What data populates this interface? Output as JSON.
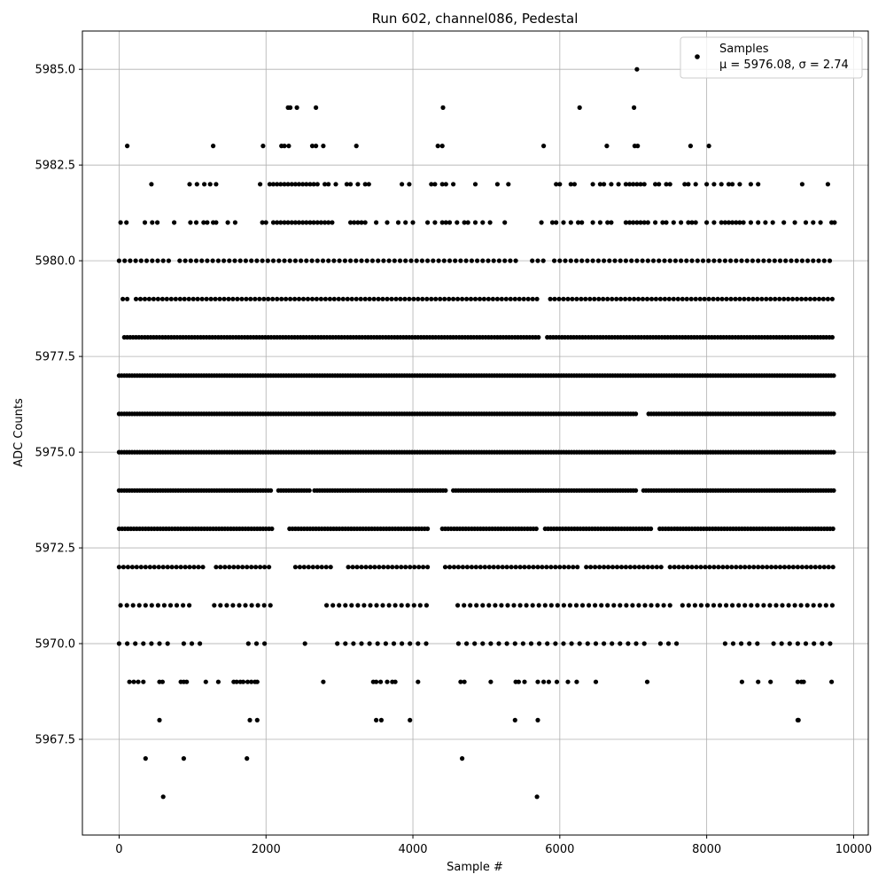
{
  "chart_data": {
    "type": "scatter",
    "title": "Run 602, channel086, Pedestal",
    "xlabel": "Sample #",
    "ylabel": "ADC Counts",
    "xlim": [
      -500,
      10200
    ],
    "ylim": [
      5965.0,
      5986.0
    ],
    "x_ticks": [
      0,
      2000,
      4000,
      6000,
      8000,
      10000
    ],
    "y_ticks": [
      5967.5,
      5970.0,
      5972.5,
      5975.0,
      5977.5,
      5980.0,
      5982.5,
      5985.0
    ],
    "x_tick_labels": [
      "0",
      "2000",
      "4000",
      "6000",
      "8000",
      "10000"
    ],
    "y_tick_labels": [
      "5967.5",
      "5970.0",
      "5972.5",
      "5975.0",
      "5977.5",
      "5980.0",
      "5982.5",
      "5985.0"
    ],
    "grid": true,
    "legend": {
      "position": "top-right",
      "entries": [
        "Samples",
        "μ = 5976.08, σ = 2.74"
      ]
    },
    "marker_color": "#000000",
    "series": [
      {
        "name": "Samples",
        "levels": [
          {
            "y": 5985,
            "x": [
              7050
            ]
          },
          {
            "y": 5984,
            "x": [
              2300,
              2330,
              2420,
              2680,
              4410,
              6270,
              7010
            ]
          },
          {
            "y": 5983,
            "x": [
              110,
              1280,
              1960,
              2210,
              2250,
              2310,
              2630,
              2680,
              2780,
              3230,
              4340,
              4400,
              5780,
              6640,
              7020,
              7060,
              7780,
              8030
            ]
          },
          {
            "y": 5982,
            "x": [
              440,
              960,
              1060,
              1160,
              1240,
              1320,
              1920,
              2050,
              2100,
              2150,
              2200,
              2250,
              2300,
              2350,
              2400,
              2450,
              2500,
              2550,
              2600,
              2650,
              2700,
              2800,
              2850,
              2950,
              3100,
              3150,
              3250,
              3350,
              3400,
              3850,
              3950,
              4250,
              4300,
              4400,
              4450,
              4550,
              4850,
              5150,
              5300,
              5950,
              6000,
              6150,
              6200,
              6450,
              6550,
              6600,
              6700,
              6800,
              6900,
              6950,
              7000,
              7050,
              7100,
              7150,
              7300,
              7350,
              7450,
              7500,
              7700,
              7750,
              7850,
              8000,
              8100,
              8200,
              8300,
              8350,
              8450,
              8600,
              8700,
              9300,
              9650
            ]
          },
          {
            "y": 5981,
            "x": [
              20,
              100,
              350,
              450,
              520,
              750,
              970,
              1050,
              1150,
              1200,
              1280,
              1320,
              1480,
              1580,
              1950,
              2000,
              2100,
              2150,
              2200,
              2250,
              2300,
              2350,
              2400,
              2450,
              2500,
              2550,
              2600,
              2650,
              2700,
              2750,
              2800,
              2850,
              2900,
              3150,
              3200,
              3250,
              3300,
              3350,
              3500,
              3650,
              3800,
              3900,
              4000,
              4200,
              4300,
              4400,
              4450,
              4500,
              4600,
              4700,
              4750,
              4850,
              4950,
              5050,
              5250,
              5750,
              5900,
              5950,
              6050,
              6150,
              6250,
              6300,
              6450,
              6550,
              6650,
              6700,
              6900,
              6950,
              7000,
              7050,
              7100,
              7150,
              7200,
              7300,
              7400,
              7450,
              7550,
              7650,
              7750,
              7800,
              7850,
              8000,
              8100,
              8200,
              8250,
              8300,
              8350,
              8400,
              8450,
              8500,
              8600,
              8700,
              8800,
              8900,
              9050,
              9200,
              9350,
              9450,
              9550,
              9700,
              9740
            ]
          }
        ],
        "bands": [
          {
            "y": 5980,
            "x_start": 0,
            "x_end": 9740,
            "step": 75,
            "gaps": [
              [
                700,
                760
              ],
              [
                5450,
                5550
              ],
              [
                5850,
                5880
              ]
            ]
          },
          {
            "y": 5979,
            "x_start": 50,
            "x_end": 9740,
            "step": 60,
            "gaps": [
              [
                150,
                200
              ],
              [
                2000,
                2020
              ],
              [
                5740,
                5850
              ]
            ]
          },
          {
            "y": 5978,
            "x_start": 70,
            "x_end": 9740,
            "step": 40,
            "gaps": [
              [
                5720,
                5810
              ]
            ]
          },
          {
            "y": 5977,
            "x_start": 0,
            "x_end": 9740,
            "step": 35,
            "gaps": []
          },
          {
            "y": 5976,
            "x_start": 0,
            "x_end": 9740,
            "step": 35,
            "gaps": [
              [
                7040,
                7200
              ]
            ]
          },
          {
            "y": 5975,
            "x_start": 0,
            "x_end": 9740,
            "step": 35,
            "gaps": []
          },
          {
            "y": 5974,
            "x_start": 0,
            "x_end": 9740,
            "step": 35,
            "gaps": [
              [
                2100,
                2160
              ],
              [
                2600,
                2650
              ],
              [
                4480,
                4520
              ],
              [
                7050,
                7130
              ]
            ]
          },
          {
            "y": 5973,
            "x_start": 0,
            "x_end": 9740,
            "step": 40,
            "gaps": [
              [
                2100,
                2180
              ],
              [
                2200,
                2300
              ],
              [
                4230,
                4380
              ],
              [
                5700,
                5780
              ],
              [
                7270,
                7350
              ]
            ]
          },
          {
            "y": 5972,
            "x_start": 0,
            "x_end": 9740,
            "step": 60,
            "gaps": [
              [
                1190,
                1290
              ],
              [
                2050,
                2350
              ],
              [
                2900,
                3100
              ],
              [
                4220,
                4400
              ],
              [
                6250,
                6300
              ],
              [
                7400,
                7450
              ]
            ]
          },
          {
            "y": 5971,
            "x_start": 20,
            "x_end": 9740,
            "step": 85,
            "gaps": [
              [
                1000,
                1280
              ],
              [
                2100,
                2800
              ],
              [
                4250,
                4580
              ],
              [
                7550,
                7650
              ]
            ]
          },
          {
            "y": 5970,
            "x_start": 0,
            "x_end": 9740,
            "step": 110,
            "gaps": [
              [
                700,
                830
              ],
              [
                1180,
                1700
              ],
              [
                2000,
                2500
              ],
              [
                2600,
                2900
              ],
              [
                4200,
                4600
              ],
              [
                7200,
                7350
              ],
              [
                7600,
                8200
              ],
              [
                8700,
                8900
              ]
            ]
          }
        ],
        "sparse": [
          {
            "y": 5969,
            "x": [
              140,
              200,
              260,
              330,
              550,
              590,
              840,
              880,
              920,
              1180,
              1350,
              1560,
              1600,
              1650,
              1690,
              1750,
              1800,
              1850,
              1880,
              2780,
              3460,
              3500,
              3560,
              3650,
              3720,
              3760,
              4070,
              4650,
              4700,
              5060,
              5400,
              5440,
              5520,
              5700,
              5780,
              5850,
              5960,
              6110,
              6230,
              6490,
              7190,
              8480,
              8700,
              8870,
              9240,
              9290,
              9320,
              9700
            ]
          },
          {
            "y": 5968,
            "x": [
              550,
              1780,
              1880,
              3500,
              3570,
              3960,
              5390,
              5700,
              9240,
              9250
            ]
          },
          {
            "y": 5967,
            "x": [
              360,
              880,
              1740,
              4670
            ]
          },
          {
            "y": 5966,
            "x": [
              600,
              5690
            ]
          }
        ]
      }
    ]
  }
}
